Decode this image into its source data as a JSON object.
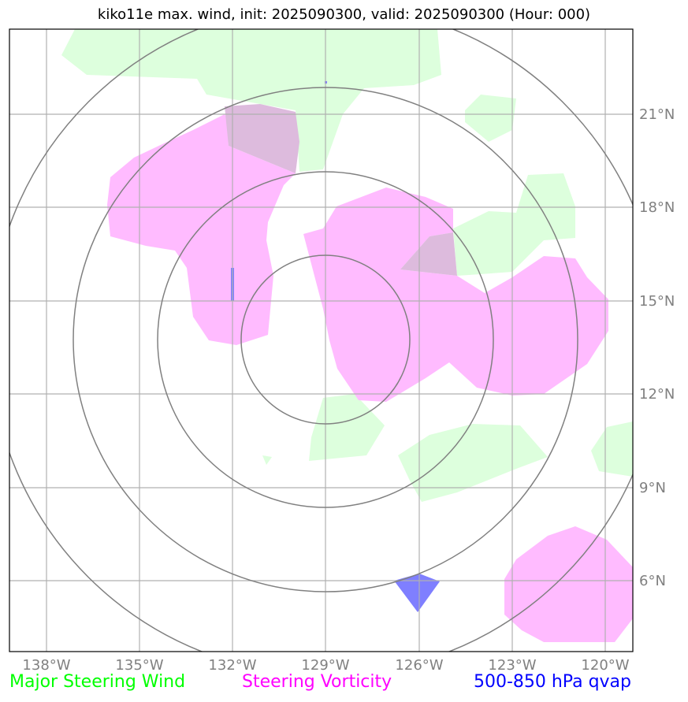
{
  "title": "kiko11e max. wind, init: 2025090300, valid: 2025090300 (Hour: 000)",
  "axes": {
    "lon_labels": [
      "138°W",
      "135°W",
      "132°W",
      "129°W",
      "126°W",
      "123°W",
      "120°W"
    ],
    "lat_labels": [
      "21°N",
      "18°N",
      "15°N",
      "12°N",
      "9°N",
      "6°N"
    ]
  },
  "legend": {
    "wind": {
      "label": "Major Steering Wind",
      "color": "#00ff00"
    },
    "vorticity": {
      "label": "Steering Vorticity",
      "color": "#ff00ff"
    },
    "qvap": {
      "label": "500-850 hPa qvap",
      "color": "#0000ff"
    }
  },
  "colors": {
    "wind_fill": "#ddffdd",
    "vorticity_fill": "#ffbbff",
    "overlap_fill": "#ddbbdd",
    "qvap_fill": "#7f7fff",
    "grid": "#b0b0b0",
    "rings": "#808080"
  }
}
